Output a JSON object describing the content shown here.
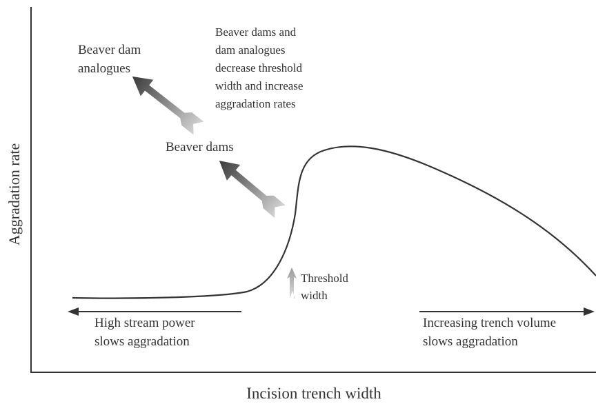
{
  "y_axis_label": "Aggradation rate",
  "x_axis_label": "Incision trench width",
  "labels": {
    "beaver_dam_analogues": [
      "Beaver dam",
      "analogues"
    ],
    "annotation": [
      "Beaver dams and",
      "dam analogues",
      "decrease threshold",
      "width and increase",
      "aggradation rates"
    ],
    "beaver_dams": "Beaver dams",
    "threshold": [
      "Threshold",
      "width"
    ],
    "left_note": [
      "High stream power",
      "slows aggradation"
    ],
    "right_note": [
      "Increasing trench volume",
      "slows aggradation"
    ]
  }
}
